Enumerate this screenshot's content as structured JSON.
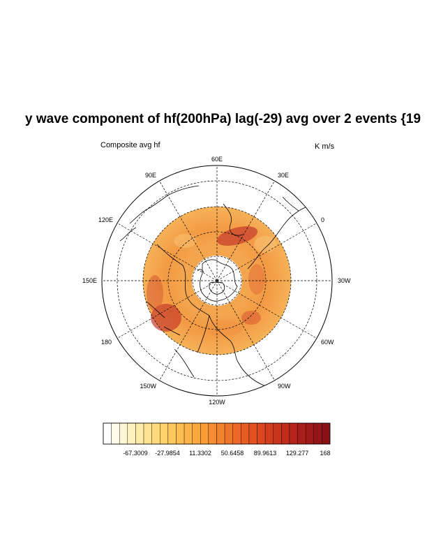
{
  "title": "y wave component of hf(200hPa) lag(-29) avg over 2 events {19",
  "left_label": "Composite avg hf",
  "right_label": "K m/s",
  "map": {
    "projection": "north polar stereographic",
    "longitude_labels": [
      "60E",
      "30E",
      "0",
      "30W",
      "60W",
      "90W",
      "120W",
      "150W",
      "180",
      "150E",
      "120E",
      "90E"
    ],
    "colors": {
      "frame": "#000000",
      "grid": "#000000",
      "coast": "#000000",
      "field_low": "#f6b45c",
      "field_mid": "#f08c3a",
      "field_high": "#c93a2a"
    }
  },
  "colorbar": {
    "tick_labels": [
      "-67.3009",
      "-27.9854",
      "11.3302",
      "50.6458",
      "89.9613",
      "129.277",
      "168"
    ],
    "colors": [
      "#ffffff",
      "#fffbeb",
      "#fff6d5",
      "#fff0c0",
      "#ffeaa8",
      "#ffe391",
      "#ffdb7c",
      "#ffd26a",
      "#fec85c",
      "#fdbe51",
      "#fcb347",
      "#fba83f",
      "#f99c38",
      "#f78f32",
      "#f4822d",
      "#f17529",
      "#ed6825",
      "#e85c22",
      "#e25120",
      "#db461e",
      "#d33c1d",
      "#ca331c",
      "#c02b1b",
      "#b5241a",
      "#aa1e19",
      "#9e1918",
      "#921517",
      "#861216"
    ]
  }
}
